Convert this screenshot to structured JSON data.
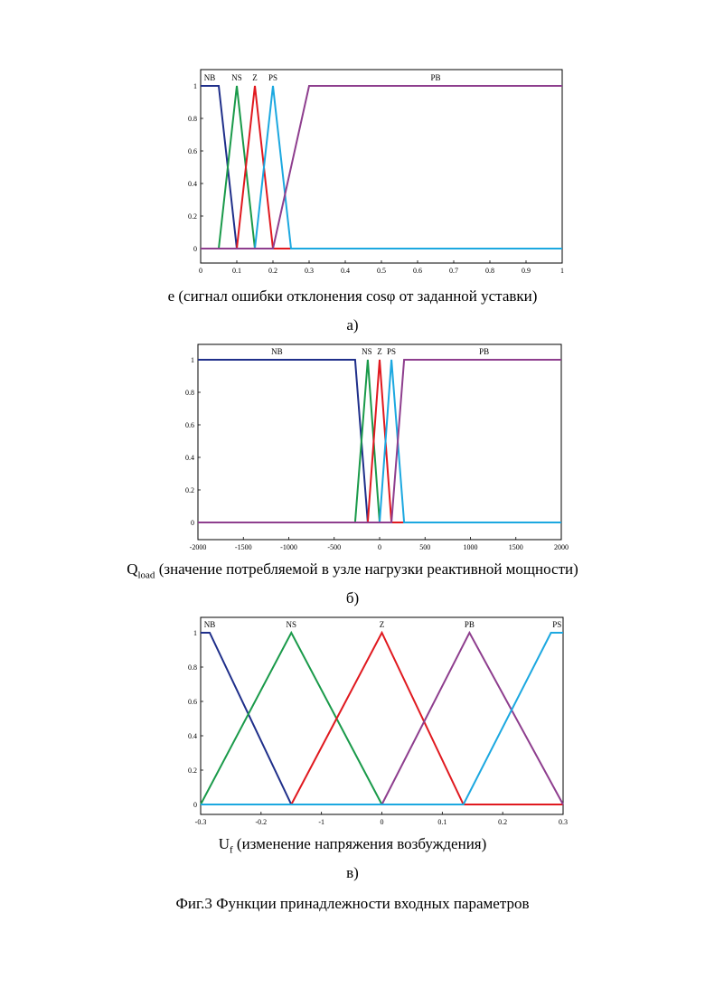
{
  "chart_data": [
    {
      "type": "line",
      "xlim": [
        0,
        1
      ],
      "ylim": [
        0,
        1
      ],
      "xticks": [
        "0",
        "0.1",
        "0.2",
        "0.3",
        "0.4",
        "0.5",
        "0.6",
        "0.7",
        "0.8",
        "0.9",
        "1"
      ],
      "yticks": [
        "0",
        "0.2",
        "0.4",
        "0.6",
        "0.8",
        "1"
      ],
      "xlabel": "e (сигнал ошибки отклонения cosφ от заданной уставки)",
      "sublabel": "а)",
      "series": [
        {
          "name": "NB",
          "color": "#1f2f8a",
          "x": [
            0,
            0.05,
            0.1,
            1
          ],
          "y": [
            1,
            1,
            0,
            0
          ]
        },
        {
          "name": "NS",
          "color": "#1a9a4a",
          "x": [
            0,
            0.05,
            0.1,
            0.15,
            1
          ],
          "y": [
            0,
            0,
            1,
            0,
            0
          ]
        },
        {
          "name": "Z",
          "color": "#e0191f",
          "x": [
            0,
            0.1,
            0.15,
            0.2,
            1
          ],
          "y": [
            0,
            0,
            1,
            0,
            0
          ]
        },
        {
          "name": "PS",
          "color": "#1ca8e0",
          "x": [
            0,
            0.15,
            0.2,
            0.25,
            1
          ],
          "y": [
            0,
            0,
            1,
            0,
            0
          ]
        },
        {
          "name": "PB",
          "color": "#8e3e8e",
          "x": [
            0,
            0.2,
            0.3,
            1
          ],
          "y": [
            0,
            0,
            1,
            1
          ]
        }
      ],
      "labels": [
        {
          "text": "NB",
          "x": 0.025
        },
        {
          "text": "NS",
          "x": 0.1
        },
        {
          "text": "Z",
          "x": 0.15
        },
        {
          "text": "PS",
          "x": 0.2
        },
        {
          "text": "PB",
          "x": 0.65
        }
      ]
    },
    {
      "type": "line",
      "xlim": [
        -2000,
        2000
      ],
      "ylim": [
        0,
        1
      ],
      "xticks": [
        "-2000",
        "-1500",
        "-1000",
        "-500",
        "0",
        "500",
        "1000",
        "1500",
        "2000"
      ],
      "yticks": [
        "0",
        "0.2",
        "0.4",
        "0.6",
        "0.8",
        "1"
      ],
      "xlabel_main": "Q",
      "xlabel_sub": "load",
      "xlabel_rest": " (значение потребляемой в узле нагрузки реактивной мощности)",
      "sublabel": "б)",
      "series": [
        {
          "name": "NB",
          "color": "#1f2f8a",
          "x": [
            -2000,
            -270,
            -130,
            2000
          ],
          "y": [
            1,
            1,
            0,
            0
          ]
        },
        {
          "name": "NS",
          "color": "#1a9a4a",
          "x": [
            -2000,
            -270,
            -130,
            0,
            2000
          ],
          "y": [
            0,
            0,
            1,
            0,
            0
          ]
        },
        {
          "name": "Z",
          "color": "#e0191f",
          "x": [
            -2000,
            -130,
            0,
            130,
            2000
          ],
          "y": [
            0,
            0,
            1,
            0,
            0
          ]
        },
        {
          "name": "PS",
          "color": "#1ca8e0",
          "x": [
            -2000,
            0,
            130,
            270,
            2000
          ],
          "y": [
            0,
            0,
            1,
            0,
            0
          ]
        },
        {
          "name": "PB",
          "color": "#8e3e8e",
          "x": [
            -2000,
            130,
            270,
            2000
          ],
          "y": [
            0,
            0,
            1,
            1
          ]
        }
      ],
      "labels": [
        {
          "text": "NB",
          "x": -1130
        },
        {
          "text": "NS",
          "x": -140
        },
        {
          "text": "Z",
          "x": 0
        },
        {
          "text": "PS",
          "x": 130
        },
        {
          "text": "PB",
          "x": 1150
        }
      ]
    },
    {
      "type": "line",
      "xlim": [
        -0.3,
        0.3
      ],
      "ylim": [
        0,
        1
      ],
      "xticks": [
        "-0.3",
        "-0.2",
        "-1",
        "0",
        "0.1",
        "0.2",
        "0.3"
      ],
      "yticks": [
        "0",
        "0.2",
        "0.4",
        "0.6",
        "0.8",
        "1"
      ],
      "xlabel_main": "U",
      "xlabel_sub": "f",
      "xlabel_rest": " (изменение напряжения возбуждения)",
      "sublabel": "в)",
      "series": [
        {
          "name": "NB",
          "color": "#1f2f8a",
          "x": [
            -0.3,
            -0.285,
            -0.15,
            0.3
          ],
          "y": [
            1,
            1,
            0,
            0
          ]
        },
        {
          "name": "NS",
          "color": "#1a9a4a",
          "x": [
            -0.3,
            -0.15,
            0,
            0.3
          ],
          "y": [
            0,
            1,
            0,
            0
          ]
        },
        {
          "name": "Z",
          "color": "#e0191f",
          "x": [
            -0.3,
            -0.15,
            0,
            0.135,
            0.3
          ],
          "y": [
            0,
            0,
            1,
            0,
            0
          ]
        },
        {
          "name": "PB",
          "color": "#8e3e8e",
          "x": [
            -0.3,
            0,
            0.145,
            0.3
          ],
          "y": [
            0,
            0,
            1,
            0
          ]
        },
        {
          "name": "PS",
          "color": "#1ca8e0",
          "x": [
            -0.3,
            0.135,
            0.28,
            0.3
          ],
          "y": [
            0,
            0,
            1,
            1
          ]
        }
      ],
      "labels": [
        {
          "text": "NB",
          "x": -0.285
        },
        {
          "text": "NS",
          "x": -0.15
        },
        {
          "text": "Z",
          "x": 0
        },
        {
          "text": "PB",
          "x": 0.145
        },
        {
          "text": "PS",
          "x": 0.29
        }
      ]
    }
  ],
  "caption": "Фиг.3 Функции принадлежности входных параметров"
}
